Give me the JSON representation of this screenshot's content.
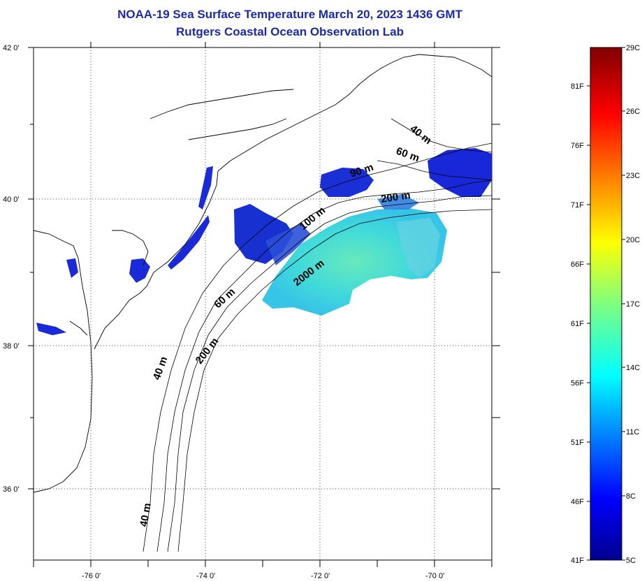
{
  "title": "NOAA-19 Sea Surface Temperature March 20, 2023 1436 GMT",
  "subtitle": "Rutgers Coastal Ocean Observation Lab",
  "map": {
    "lat_labels": [
      "42 0'",
      "40 0'",
      "38 0'",
      "36 0'"
    ],
    "lon_labels": [
      "-76 0'",
      "-74 0'",
      "-72 0'",
      "-70 0'"
    ],
    "depth_labels": [
      "40 m",
      "60 m",
      "90 m",
      "200 m",
      "100 m",
      "2000 m",
      "60 m",
      "40 m",
      "200 m",
      "40 m"
    ]
  },
  "colorbar": {
    "celsius_labels": [
      "29C",
      "26C",
      "23C",
      "20C",
      "17C",
      "14C",
      "11C",
      "8C",
      "5C"
    ],
    "fahrenheit_labels": [
      "81F",
      "76F",
      "71F",
      "66F",
      "61F",
      "56F",
      "51F",
      "46F",
      "41F"
    ]
  },
  "colors": {
    "title": "#1a2aa8",
    "cold": "#1a2ad8",
    "warm": "#4de0c8"
  }
}
